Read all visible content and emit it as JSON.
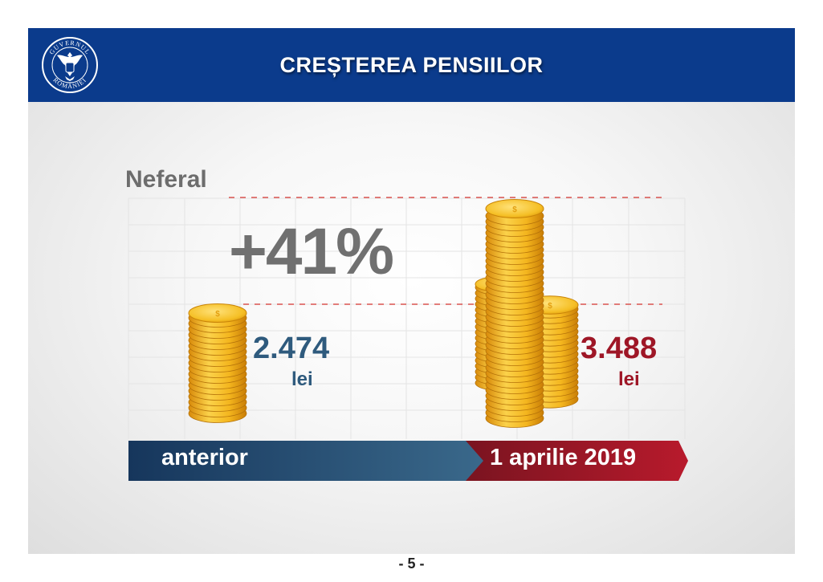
{
  "header": {
    "title": "CREȘTEREA PENSIILOR",
    "logo_text_top": "GUVERNUL",
    "logo_text_bottom": "ROMÂNIEI"
  },
  "chart": {
    "category": "Neferal",
    "increase": "+41%",
    "before": {
      "value": "2.474",
      "unit": "lei",
      "label": "anterior"
    },
    "after": {
      "value": "3.488",
      "unit": "lei",
      "label": "1 aprilie 2019"
    }
  },
  "footer": {
    "page": "- 5 -"
  },
  "colors": {
    "header_bg": "#0b3b8c",
    "before_blue": "#2e5a7d",
    "after_red": "#9e1626",
    "coin_gold": "#f2b51c",
    "dashed_line": "#d9534f"
  }
}
